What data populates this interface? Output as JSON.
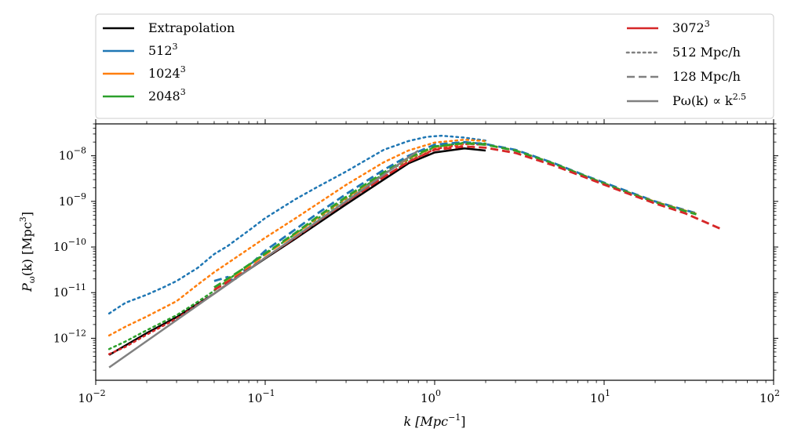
{
  "chart_data": {
    "type": "line",
    "xscale": "log",
    "yscale": "log",
    "xlim": [
      0.01,
      100
    ],
    "ylim": [
      1.2e-13,
      5e-08
    ],
    "xlabel": "k [Mpc⁻¹]",
    "xlabel_parts": {
      "main": "k [Mpc",
      "sup": "−1",
      "close": "]"
    },
    "ylabel": "Pω(k) [Mpc³]",
    "ylabel_parts": {
      "main": "P",
      "sub": "ω",
      "mid": "(k) [Mpc",
      "sup": "3",
      "close": "]"
    },
    "x_ticks": [
      {
        "value": 0.01,
        "base": "10",
        "exp": "−2"
      },
      {
        "value": 0.1,
        "base": "10",
        "exp": "−1"
      },
      {
        "value": 1,
        "base": "10",
        "exp": "0"
      },
      {
        "value": 10,
        "base": "10",
        "exp": "1"
      },
      {
        "value": 100,
        "base": "10",
        "exp": "2"
      }
    ],
    "y_ticks": [
      {
        "value": 1e-12,
        "base": "10",
        "exp": "−12"
      },
      {
        "value": 1e-11,
        "base": "10",
        "exp": "−11"
      },
      {
        "value": 1e-10,
        "base": "10",
        "exp": "−10"
      },
      {
        "value": 1e-09,
        "base": "10",
        "exp": "−9"
      },
      {
        "value": 1e-08,
        "base": "10",
        "exp": "−8"
      }
    ],
    "legend": {
      "placement": "top (outside plot)",
      "left": [
        {
          "label": "Extrapolation",
          "sup": "",
          "color": "#000000",
          "style": "solid"
        },
        {
          "label": "512",
          "sup": "3",
          "color": "#1f77b4",
          "style": "solid"
        },
        {
          "label": "1024",
          "sup": "3",
          "color": "#ff7f0e",
          "style": "solid"
        },
        {
          "label": "2048",
          "sup": "3",
          "color": "#2ca02c",
          "style": "solid"
        }
      ],
      "right": [
        {
          "label": "3072",
          "sup": "3",
          "color": "#d62728",
          "style": "solid"
        },
        {
          "label": "512 Mpc/h",
          "sup": "",
          "color": "#808080",
          "style": "dotted"
        },
        {
          "label": "128 Mpc/h",
          "sup": "",
          "color": "#808080",
          "style": "dashed"
        },
        {
          "label": "Pω(k) ∝ k",
          "sup": "2.5",
          "color": "#808080",
          "style": "solid"
        }
      ]
    },
    "series": [
      {
        "name": "Extrapolation",
        "color": "#000000",
        "style": "solid",
        "width": 2.5,
        "points": [
          [
            0.012,
            4.3e-13
          ],
          [
            0.02,
            1.3e-12
          ],
          [
            0.03,
            2.9e-12
          ],
          [
            0.05,
            9.5e-12
          ],
          [
            0.07,
            2.3e-11
          ],
          [
            0.1,
            5.6e-11
          ],
          [
            0.15,
            1.5e-10
          ],
          [
            0.2,
            3.1e-10
          ],
          [
            0.3,
            8.6e-10
          ],
          [
            0.5,
            3e-09
          ],
          [
            0.7,
            6.8e-09
          ],
          [
            1.0,
            1.18e-08
          ],
          [
            1.5,
            1.45e-08
          ],
          [
            2.0,
            1.3e-08
          ]
        ]
      },
      {
        "name": "512^3 512 Mpc/h",
        "color": "#1f77b4",
        "style": "dotted",
        "width": 2.5,
        "points": [
          [
            0.012,
            3.5e-12
          ],
          [
            0.015,
            6e-12
          ],
          [
            0.02,
            9e-12
          ],
          [
            0.025,
            1.3e-11
          ],
          [
            0.03,
            1.8e-11
          ],
          [
            0.04,
            3.5e-11
          ],
          [
            0.05,
            7e-11
          ],
          [
            0.06,
            1.05e-10
          ],
          [
            0.08,
            2.3e-10
          ],
          [
            0.1,
            4.3e-10
          ],
          [
            0.15,
            1.1e-09
          ],
          [
            0.2,
            2e-09
          ],
          [
            0.3,
            4.5e-09
          ],
          [
            0.5,
            1.35e-08
          ],
          [
            0.7,
            2.1e-08
          ],
          [
            0.9,
            2.6e-08
          ],
          [
            1.1,
            2.75e-08
          ],
          [
            1.5,
            2.5e-08
          ],
          [
            2.0,
            2.15e-08
          ]
        ]
      },
      {
        "name": "1024^3 512 Mpc/h",
        "color": "#ff7f0e",
        "style": "dotted",
        "width": 2.5,
        "points": [
          [
            0.012,
            1.15e-12
          ],
          [
            0.015,
            1.8e-12
          ],
          [
            0.02,
            3e-12
          ],
          [
            0.03,
            6.5e-12
          ],
          [
            0.04,
            1.5e-11
          ],
          [
            0.05,
            2.8e-11
          ],
          [
            0.07,
            6.5e-11
          ],
          [
            0.1,
            1.6e-10
          ],
          [
            0.15,
            4.2e-10
          ],
          [
            0.2,
            8.5e-10
          ],
          [
            0.3,
            2.3e-09
          ],
          [
            0.5,
            7.2e-09
          ],
          [
            0.7,
            1.3e-08
          ],
          [
            1.0,
            1.95e-08
          ],
          [
            1.5,
            2.25e-08
          ],
          [
            2.0,
            2.1e-08
          ]
        ]
      },
      {
        "name": "2048^3 512 Mpc/h",
        "color": "#2ca02c",
        "style": "dotted",
        "width": 2.5,
        "points": [
          [
            0.012,
            5.8e-13
          ],
          [
            0.015,
            8.5e-13
          ],
          [
            0.02,
            1.5e-12
          ],
          [
            0.03,
            3.2e-12
          ],
          [
            0.04,
            6.3e-12
          ],
          [
            0.05,
            1.1e-11
          ],
          [
            0.07,
            2.9e-11
          ],
          [
            0.1,
            7e-11
          ],
          [
            0.15,
            1.9e-10
          ],
          [
            0.2,
            4e-10
          ],
          [
            0.3,
            1.15e-09
          ],
          [
            0.5,
            4e-09
          ],
          [
            0.7,
            8.3e-09
          ],
          [
            1.0,
            1.55e-08
          ],
          [
            1.5,
            1.95e-08
          ],
          [
            2.0,
            1.85e-08
          ]
        ]
      },
      {
        "name": "3072^3 512 Mpc/h",
        "color": "#d62728",
        "style": "dotted",
        "width": 2.5,
        "points": [
          [
            0.012,
            4.5e-13
          ],
          [
            0.015,
            6.5e-13
          ],
          [
            0.02,
            1.2e-12
          ],
          [
            0.03,
            2.7e-12
          ],
          [
            0.04,
            5.5e-12
          ],
          [
            0.05,
            9.5e-12
          ],
          [
            0.07,
            2.4e-11
          ],
          [
            0.1,
            5.8e-11
          ],
          [
            0.15,
            1.6e-10
          ],
          [
            0.2,
            3.4e-10
          ],
          [
            0.3,
            9.8e-10
          ],
          [
            0.5,
            3.4e-09
          ],
          [
            0.7,
            7.3e-09
          ],
          [
            1.0,
            1.4e-08
          ],
          [
            1.5,
            1.8e-08
          ],
          [
            2.0,
            1.75e-08
          ]
        ]
      },
      {
        "name": "512^3 128 Mpc/h",
        "color": "#1f77b4",
        "style": "dashed",
        "width": 2.8,
        "points": [
          [
            0.05,
            1.8e-11
          ],
          [
            0.06,
            2.2e-11
          ],
          [
            0.065,
            1.8e-11
          ],
          [
            0.07,
            2.4e-11
          ],
          [
            0.1,
            8.3e-11
          ],
          [
            0.15,
            2.4e-10
          ],
          [
            0.2,
            5.2e-10
          ],
          [
            0.3,
            1.45e-09
          ],
          [
            0.5,
            4.9e-09
          ],
          [
            0.7,
            1e-08
          ],
          [
            1.0,
            1.75e-08
          ],
          [
            1.5,
            2e-08
          ],
          [
            2.0,
            1.8e-08
          ],
          [
            3.0,
            1.35e-08
          ],
          [
            5.0,
            7e-09
          ],
          [
            8.0,
            3.5e-09
          ],
          [
            12.0,
            2e-09
          ],
          [
            20.0,
            1e-09
          ],
          [
            35.0,
            5.5e-10
          ]
        ]
      },
      {
        "name": "1024^3 128 Mpc/h",
        "color": "#ff7f0e",
        "style": "dashed",
        "width": 2.8,
        "points": [
          [
            0.05,
            1.3e-11
          ],
          [
            0.07,
            2.7e-11
          ],
          [
            0.1,
            6.8e-11
          ],
          [
            0.15,
            1.9e-10
          ],
          [
            0.2,
            4.2e-10
          ],
          [
            0.3,
            1.2e-09
          ],
          [
            0.5,
            4.1e-09
          ],
          [
            0.7,
            8.7e-09
          ],
          [
            1.0,
            1.55e-08
          ],
          [
            1.5,
            1.85e-08
          ],
          [
            2.0,
            1.75e-08
          ],
          [
            3.0,
            1.3e-08
          ],
          [
            5.0,
            6.8e-09
          ],
          [
            8.0,
            3.4e-09
          ],
          [
            12.0,
            1.9e-09
          ],
          [
            20.0,
            9.8e-10
          ],
          [
            35.0,
            5.3e-10
          ]
        ]
      },
      {
        "name": "2048^3 128 Mpc/h",
        "color": "#2ca02c",
        "style": "dashed",
        "width": 2.8,
        "points": [
          [
            0.05,
            1.3e-11
          ],
          [
            0.07,
            2.9e-11
          ],
          [
            0.1,
            7.2e-11
          ],
          [
            0.15,
            2e-10
          ],
          [
            0.2,
            4.4e-10
          ],
          [
            0.3,
            1.25e-09
          ],
          [
            0.5,
            4.3e-09
          ],
          [
            0.7,
            9e-09
          ],
          [
            1.0,
            1.6e-08
          ],
          [
            1.5,
            1.9e-08
          ],
          [
            2.0,
            1.75e-08
          ],
          [
            3.0,
            1.3e-08
          ],
          [
            5.0,
            6.8e-09
          ],
          [
            8.0,
            3.4e-09
          ],
          [
            12.0,
            1.9e-09
          ],
          [
            20.0,
            9.6e-10
          ],
          [
            35.0,
            5.2e-10
          ]
        ]
      },
      {
        "name": "3072^3 128 Mpc/h",
        "color": "#d62728",
        "style": "dashed",
        "width": 2.8,
        "points": [
          [
            0.05,
            1.15e-11
          ],
          [
            0.07,
            2.4e-11
          ],
          [
            0.1,
            5.8e-11
          ],
          [
            0.15,
            1.6e-10
          ],
          [
            0.2,
            3.4e-10
          ],
          [
            0.3,
            9.8e-10
          ],
          [
            0.5,
            3.4e-09
          ],
          [
            0.7,
            7.4e-09
          ],
          [
            1.0,
            1.35e-08
          ],
          [
            1.5,
            1.6e-08
          ],
          [
            2.0,
            1.5e-08
          ],
          [
            3.0,
            1.15e-08
          ],
          [
            5.0,
            6.2e-09
          ],
          [
            8.0,
            3.2e-09
          ],
          [
            12.0,
            1.8e-09
          ],
          [
            20.0,
            9e-10
          ],
          [
            30.0,
            5.5e-10
          ],
          [
            50.0,
            2.4e-10
          ]
        ]
      },
      {
        "name": "Pω(k) ∝ k^2.5",
        "color": "#808080",
        "style": "solid",
        "width": 2.5,
        "points": [
          [
            0.012,
            2.3e-13
          ],
          [
            0.8,
            1.3e-08
          ]
        ]
      }
    ]
  }
}
